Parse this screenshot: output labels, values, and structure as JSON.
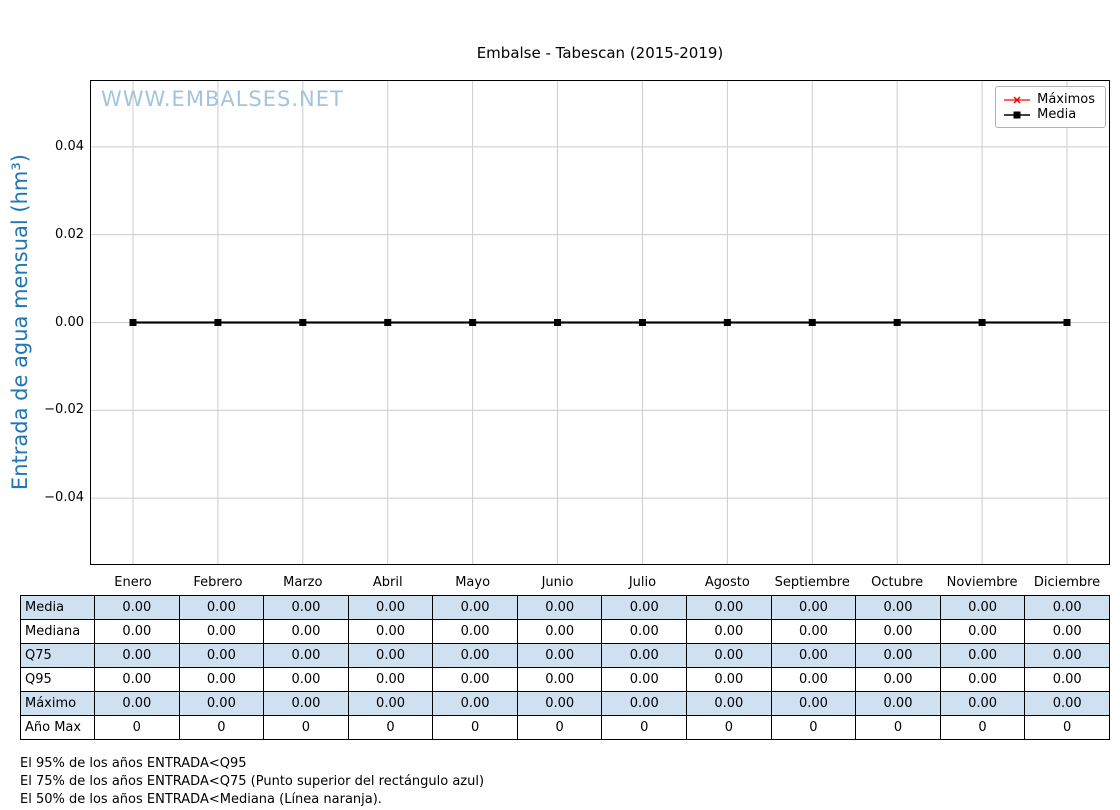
{
  "chart_data": {
    "type": "line",
    "title": "Embalse - Tabescan (2015-2019)",
    "ylabel": "Entrada de agua mensual (hm³)",
    "watermark": "WWW.EMBALSES.NET",
    "categories": [
      "Enero",
      "Febrero",
      "Marzo",
      "Abril",
      "Mayo",
      "Junio",
      "Julio",
      "Agosto",
      "Septiembre",
      "Octubre",
      "Noviembre",
      "Diciembre"
    ],
    "series": [
      {
        "name": "Máximos",
        "color": "#ff0000",
        "marker": "x",
        "line_width": 1.2,
        "zorder": 2,
        "in_legend": true,
        "values": [
          0,
          0,
          0,
          0,
          0,
          0,
          0,
          0,
          0,
          0,
          0,
          0
        ]
      },
      {
        "name": "Media",
        "color": "#000000",
        "marker": "square",
        "line_width": 1.5,
        "zorder": 3,
        "in_legend": true,
        "values": [
          0,
          0,
          0,
          0,
          0,
          0,
          0,
          0,
          0,
          0,
          0,
          0
        ]
      },
      {
        "name": "Mediana",
        "color": "#ff7f0e",
        "marker": "none",
        "line_width": 3,
        "zorder": 1,
        "in_legend": false,
        "values": [
          0,
          0,
          0,
          0,
          0,
          0,
          0,
          0,
          0,
          0,
          0,
          0
        ]
      }
    ],
    "yticks": [
      {
        "value": 0.04,
        "label": "0.04"
      },
      {
        "value": 0.02,
        "label": "0.02"
      },
      {
        "value": 0.0,
        "label": "0.00"
      },
      {
        "value": -0.02,
        "label": "−0.02"
      },
      {
        "value": -0.04,
        "label": "−0.04"
      }
    ],
    "ylim": [
      -0.055,
      0.055
    ],
    "grid": true,
    "legend_position": "upper right"
  },
  "table": {
    "shade_color": "#cfe0f1",
    "rows": [
      {
        "label": "Media",
        "shaded": true,
        "values": [
          "0.00",
          "0.00",
          "0.00",
          "0.00",
          "0.00",
          "0.00",
          "0.00",
          "0.00",
          "0.00",
          "0.00",
          "0.00",
          "0.00"
        ]
      },
      {
        "label": "Mediana",
        "shaded": false,
        "values": [
          "0.00",
          "0.00",
          "0.00",
          "0.00",
          "0.00",
          "0.00",
          "0.00",
          "0.00",
          "0.00",
          "0.00",
          "0.00",
          "0.00"
        ]
      },
      {
        "label": "Q75",
        "shaded": true,
        "values": [
          "0.00",
          "0.00",
          "0.00",
          "0.00",
          "0.00",
          "0.00",
          "0.00",
          "0.00",
          "0.00",
          "0.00",
          "0.00",
          "0.00"
        ]
      },
      {
        "label": "Q95",
        "shaded": false,
        "values": [
          "0.00",
          "0.00",
          "0.00",
          "0.00",
          "0.00",
          "0.00",
          "0.00",
          "0.00",
          "0.00",
          "0.00",
          "0.00",
          "0.00"
        ]
      },
      {
        "label": "Máximo",
        "shaded": true,
        "values": [
          "0.00",
          "0.00",
          "0.00",
          "0.00",
          "0.00",
          "0.00",
          "0.00",
          "0.00",
          "0.00",
          "0.00",
          "0.00",
          "0.00"
        ]
      },
      {
        "label": "Año Max",
        "shaded": false,
        "values": [
          "0",
          "0",
          "0",
          "0",
          "0",
          "0",
          "0",
          "0",
          "0",
          "0",
          "0",
          "0"
        ]
      }
    ]
  },
  "footnotes": [
    "El 95% de los años ENTRADA<Q95",
    "El 75% de los años ENTRADA<Q75 (Punto superior del rectángulo azul)",
    "El 50% de los años ENTRADA<Mediana (Línea naranja)."
  ],
  "colors": {
    "ylabel": "#1f77b4",
    "watermark": "#a3c4dd",
    "grid": "#cccccc",
    "table_shade": "#cfe0f1"
  }
}
